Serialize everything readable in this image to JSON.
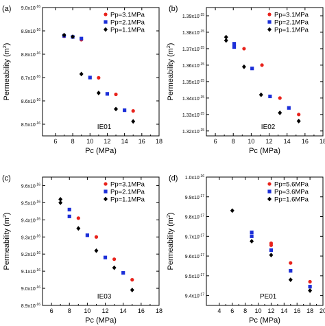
{
  "chart_data": [
    {
      "type": "scatter",
      "panel_label": "(a)",
      "sample_label": "IE01",
      "xlabel": "Pc (MPa)",
      "ylabel": "Permeability (m",
      "ylabel_sup": "2",
      "ylabel_tail": ")",
      "xlim": [
        4.5,
        18
      ],
      "ylim": [
        8.45,
        9.0
      ],
      "xticks": [
        "6",
        "8",
        "10",
        "12",
        "14",
        "16",
        "18"
      ],
      "yticks": [
        {
          "value": 8.5,
          "mantissa": "8.5x10",
          "exponent": "-16"
        },
        {
          "value": 8.6,
          "mantissa": "8.6x10",
          "exponent": "-16"
        },
        {
          "value": 8.7,
          "mantissa": "8.7x10",
          "exponent": "-16"
        },
        {
          "value": 8.8,
          "mantissa": "8.8x10",
          "exponent": "-16"
        },
        {
          "value": 8.9,
          "mantissa": "8.9x10",
          "exponent": "-16"
        },
        {
          "value": 9.0,
          "mantissa": "9.0x10",
          "exponent": "-16"
        }
      ],
      "legend_position": "top-right",
      "series": [
        {
          "name": "Pp=3.1MPa",
          "color": "#e8221b",
          "marker": "circle",
          "points": [
            [
              7,
              8.877
            ],
            [
              9,
              8.862
            ],
            [
              11,
              8.699
            ],
            [
              13,
              8.628
            ],
            [
              15,
              8.557
            ]
          ]
        },
        {
          "name": "Pp=2.1MPa",
          "color": "#1c2fd8",
          "marker": "square",
          "points": [
            [
              7,
              8.879
            ],
            [
              8,
              8.874
            ],
            [
              9,
              8.867
            ],
            [
              10,
              8.7
            ],
            [
              12,
              8.63
            ],
            [
              14,
              8.56
            ]
          ]
        },
        {
          "name": "Pp=1.1MPa",
          "color": "#000000",
          "marker": "diamond",
          "points": [
            [
              7,
              8.882
            ],
            [
              8,
              8.875
            ],
            [
              9,
              8.715
            ],
            [
              11,
              8.634
            ],
            [
              13,
              8.565
            ],
            [
              15,
              8.512
            ]
          ]
        }
      ]
    },
    {
      "type": "scatter",
      "panel_label": "(b)",
      "sample_label": "IE02",
      "xlabel": "Pc (MPa)",
      "ylabel": "Permeability (m",
      "ylabel_sup": "2",
      "ylabel_tail": ")",
      "xlim": [
        5,
        18
      ],
      "ylim": [
        1.317,
        1.395
      ],
      "xticks": [
        "6",
        "8",
        "10",
        "12",
        "14",
        "16",
        "18"
      ],
      "yticks": [
        {
          "value": 1.32,
          "mantissa": "1.32x10",
          "exponent": "-15"
        },
        {
          "value": 1.33,
          "mantissa": "1.33x10",
          "exponent": "-15"
        },
        {
          "value": 1.34,
          "mantissa": "1.34x10",
          "exponent": "-15"
        },
        {
          "value": 1.35,
          "mantissa": "1.35x10",
          "exponent": "-15"
        },
        {
          "value": 1.36,
          "mantissa": "1.36x10",
          "exponent": "-15"
        },
        {
          "value": 1.37,
          "mantissa": "1.37x10",
          "exponent": "-15"
        },
        {
          "value": 1.38,
          "mantissa": "1.38x10",
          "exponent": "-15"
        },
        {
          "value": 1.39,
          "mantissa": "1.39x10",
          "exponent": "-15"
        }
      ],
      "legend_position": "top-right",
      "series": [
        {
          "name": "Pp=3.1MPa",
          "color": "#e8221b",
          "marker": "circle",
          "points": [
            [
              9.2,
              1.37
            ],
            [
              11.2,
              1.36
            ],
            [
              13.2,
              1.34
            ],
            [
              15.3,
              1.33
            ]
          ]
        },
        {
          "name": "Pp=2.1MPa",
          "color": "#1c2fd8",
          "marker": "square",
          "points": [
            [
              8.1,
              1.373
            ],
            [
              8.1,
              1.371
            ],
            [
              10.1,
              1.358
            ],
            [
              12.1,
              1.341
            ],
            [
              14.2,
              1.334
            ]
          ]
        },
        {
          "name": "Pp=1.1MPa",
          "color": "#000000",
          "marker": "diamond",
          "points": [
            [
              7.2,
              1.377
            ],
            [
              7.2,
              1.375
            ],
            [
              9.2,
              1.359
            ],
            [
              11.1,
              1.342
            ],
            [
              13.2,
              1.331
            ],
            [
              15.3,
              1.326
            ]
          ]
        }
      ]
    },
    {
      "type": "scatter",
      "panel_label": "(c)",
      "sample_label": "IE03",
      "xlabel": "Pc (MPa)",
      "ylabel": "Permeability (m",
      "ylabel_sup": "2",
      "ylabel_tail": ")",
      "xlim": [
        5,
        18
      ],
      "ylim": [
        8.9,
        9.65
      ],
      "xticks": [
        "6",
        "8",
        "10",
        "12",
        "14",
        "16",
        "18"
      ],
      "yticks": [
        {
          "value": 8.9,
          "mantissa": "8.9x10",
          "exponent": "-16"
        },
        {
          "value": 9.0,
          "mantissa": "9.0x10",
          "exponent": "-16"
        },
        {
          "value": 9.1,
          "mantissa": "9.1x10",
          "exponent": "-16"
        },
        {
          "value": 9.2,
          "mantissa": "9.2x10",
          "exponent": "-16"
        },
        {
          "value": 9.3,
          "mantissa": "9.3x10",
          "exponent": "-16"
        },
        {
          "value": 9.4,
          "mantissa": "9.4x10",
          "exponent": "-16"
        },
        {
          "value": 9.5,
          "mantissa": "9.5x10",
          "exponent": "-16"
        },
        {
          "value": 9.6,
          "mantissa": "9.6x10",
          "exponent": "-16"
        }
      ],
      "legend_position": "top-right",
      "series": [
        {
          "name": "Pp=3.1MPa",
          "color": "#e8221b",
          "marker": "circle",
          "points": [
            [
              9,
              9.41
            ],
            [
              11,
              9.3
            ],
            [
              13,
              9.17
            ],
            [
              15,
              9.05
            ]
          ]
        },
        {
          "name": "Pp=2.1MPa",
          "color": "#1c2fd8",
          "marker": "square",
          "points": [
            [
              8,
              9.46
            ],
            [
              8,
              9.42
            ],
            [
              10,
              9.31
            ],
            [
              12,
              9.18
            ],
            [
              14,
              9.09
            ]
          ]
        },
        {
          "name": "Pp=1.1MPa",
          "color": "#000000",
          "marker": "diamond",
          "points": [
            [
              7,
              9.52
            ],
            [
              7,
              9.5
            ],
            [
              9,
              9.35
            ],
            [
              11,
              9.22
            ],
            [
              13,
              9.12
            ],
            [
              15,
              8.99
            ]
          ]
        }
      ]
    },
    {
      "type": "scatter",
      "panel_label": "(d)",
      "sample_label": "PE01",
      "xlabel": "Pc (MPa)",
      "ylabel": "Permeability (m",
      "ylabel_sup": "2",
      "ylabel_tail": ")",
      "xlim": [
        2,
        20
      ],
      "ylim": [
        9.35,
        10.0
      ],
      "xticks": [
        "4",
        "6",
        "8",
        "10",
        "12",
        "14",
        "16",
        "18",
        "20"
      ],
      "yticks": [
        {
          "value": 9.4,
          "mantissa": "9.4x10",
          "exponent": "-17"
        },
        {
          "value": 9.5,
          "mantissa": "9.5x10",
          "exponent": "-17"
        },
        {
          "value": 9.6,
          "mantissa": "9.6x10",
          "exponent": "-17"
        },
        {
          "value": 9.7,
          "mantissa": "9.7x10",
          "exponent": "-17"
        },
        {
          "value": 9.8,
          "mantissa": "9.8x10",
          "exponent": "-17"
        },
        {
          "value": 9.9,
          "mantissa": "9.9x10",
          "exponent": "-17"
        },
        {
          "value": 10.0,
          "mantissa": "1.0x10",
          "exponent": "-16"
        }
      ],
      "legend_position": "top-right",
      "series": [
        {
          "name": "Pp=5.6MPa",
          "color": "#e8221b",
          "marker": "circle",
          "points": [
            [
              12,
              9.665
            ],
            [
              12,
              9.655
            ],
            [
              15,
              9.565
            ],
            [
              18,
              9.47
            ]
          ]
        },
        {
          "name": "Pp=3.6MPa",
          "color": "#1c2fd8",
          "marker": "square",
          "points": [
            [
              9,
              9.72
            ],
            [
              9,
              9.7
            ],
            [
              12,
              9.63
            ],
            [
              15,
              9.525
            ],
            [
              18,
              9.445
            ]
          ]
        },
        {
          "name": "Pp=1.6MPa",
          "color": "#000000",
          "marker": "diamond",
          "points": [
            [
              6,
              9.83
            ],
            [
              9,
              9.675
            ],
            [
              12,
              9.605
            ],
            [
              15,
              9.48
            ],
            [
              18,
              9.425
            ]
          ]
        }
      ]
    }
  ]
}
